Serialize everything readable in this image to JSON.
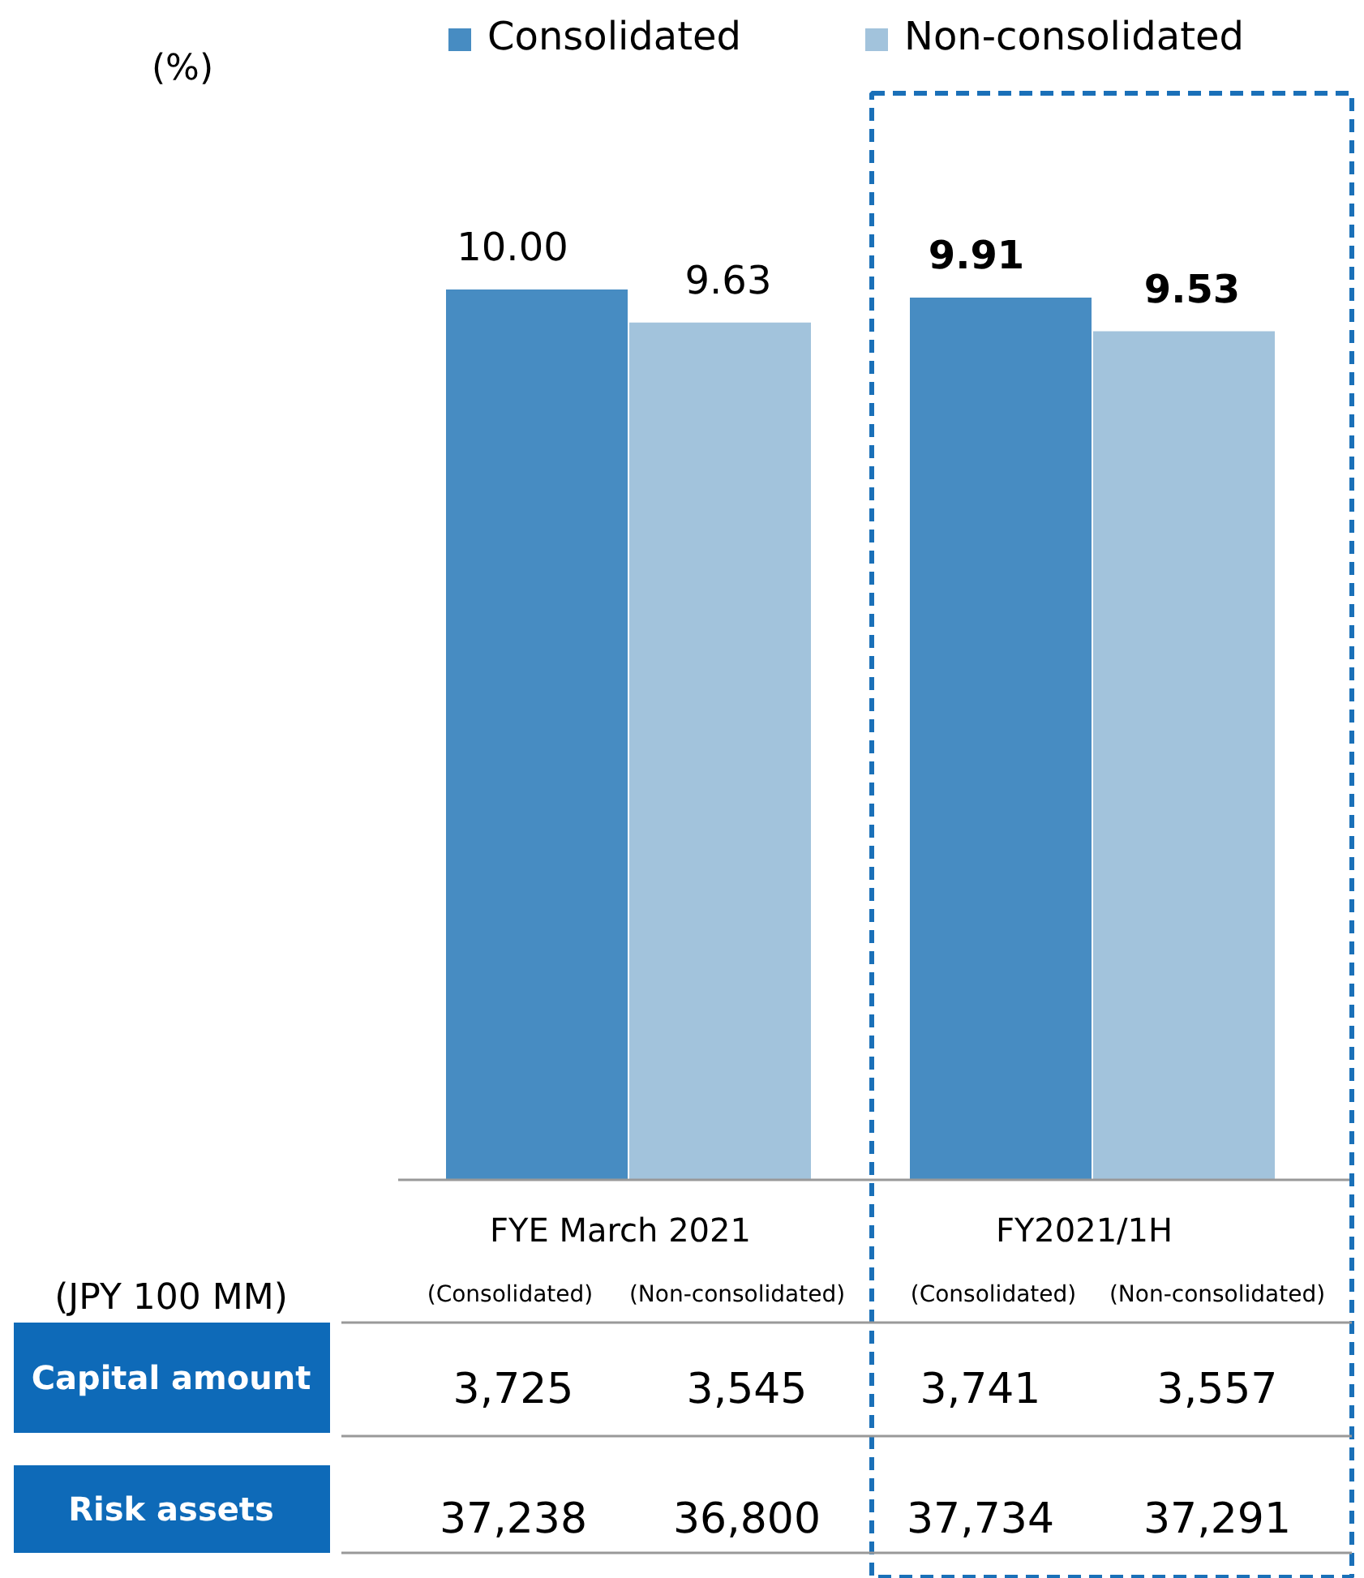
{
  "chart_data": {
    "type": "bar",
    "categories": [
      "FYE March 2021",
      "FY2021/1H"
    ],
    "series": [
      {
        "name": "Consolidated",
        "color": "#478cc2",
        "values": [
          10.0,
          9.91
        ],
        "value_labels": [
          "10.00",
          "9.91"
        ]
      },
      {
        "name": "Non-consolidated",
        "color": "#a2c3dc",
        "values": [
          9.63,
          9.53
        ],
        "value_labels": [
          "9.63",
          "9.53"
        ]
      }
    ],
    "legend": "top",
    "annotations": [
      "(%)",
      "(JPY 100 MM)",
      "(Consolidated)",
      "(Non-consolidated)",
      "(Consolidated)",
      "(Non-consolidated)",
      "Capital amount",
      "3,725",
      "3,545",
      "3,741",
      "3,557",
      "Risk assets",
      "37,238",
      "36,800",
      "37,734",
      "37,291"
    ]
  }
}
